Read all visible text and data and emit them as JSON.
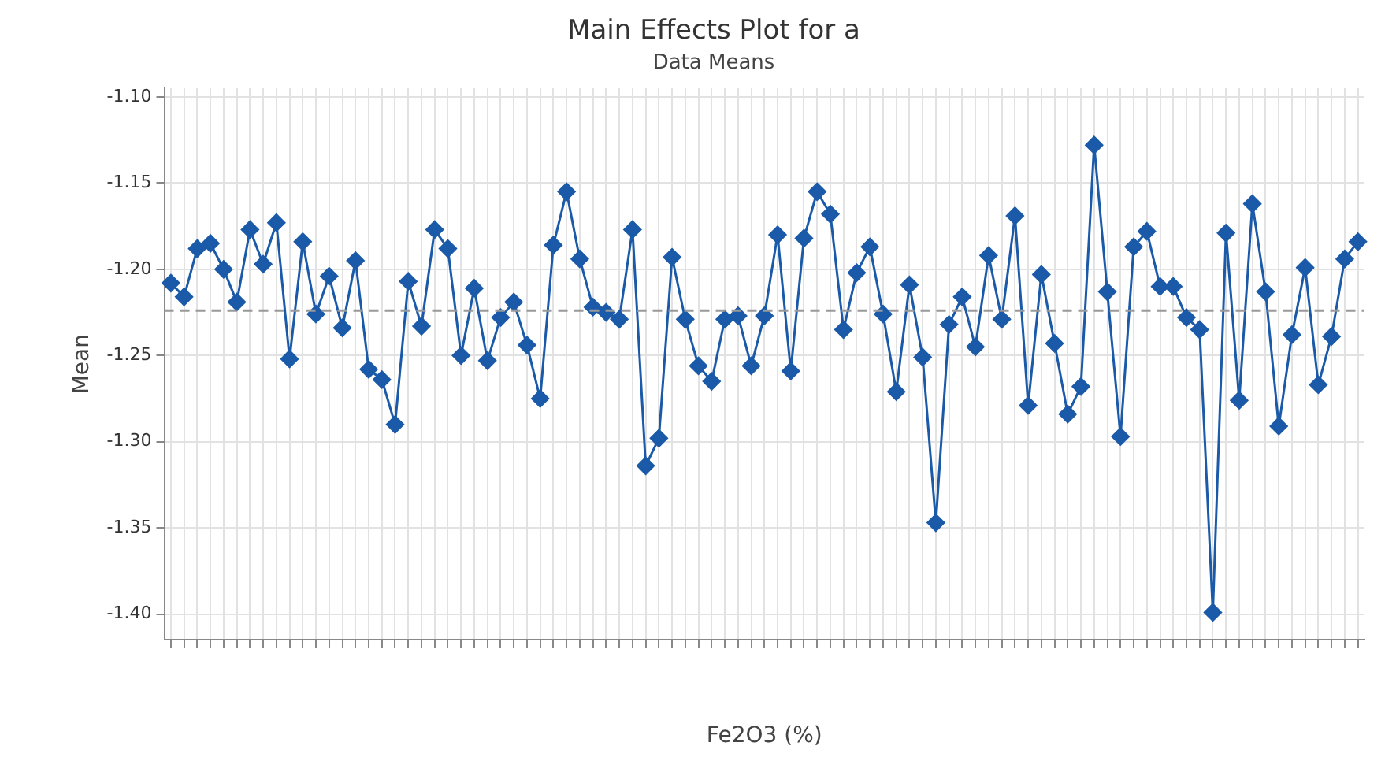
{
  "chart_data": {
    "type": "line",
    "title": "Main Effects Plot for a",
    "subtitle": "Data Means",
    "xlabel": "Fe2O3 (%)",
    "ylabel": "Mean",
    "categories": [
      null,
      null,
      null,
      null,
      null,
      null,
      null,
      null,
      null,
      null,
      null,
      null,
      null,
      null,
      null,
      null,
      null,
      null,
      null,
      null,
      null,
      null,
      null,
      null,
      null,
      null,
      null,
      null,
      null,
      null,
      null,
      null,
      null,
      null,
      null,
      null,
      null,
      null,
      null,
      null,
      null,
      null,
      null,
      null,
      null,
      null,
      null,
      null,
      null,
      null,
      null,
      null,
      null,
      null,
      null,
      null,
      null,
      null,
      null,
      null,
      null,
      null,
      null,
      null,
      null,
      null,
      null,
      null,
      null,
      null,
      null,
      null,
      null,
      null,
      null,
      null,
      null,
      null,
      null,
      null,
      null,
      null,
      null,
      null,
      null,
      null,
      null,
      null,
      null,
      null,
      null
    ],
    "series": [
      {
        "color": "#1a5aa8",
        "values": [
          -1.208,
          -1.216,
          -1.188,
          -1.185,
          -1.2,
          -1.219,
          -1.177,
          -1.197,
          -1.173,
          -1.252,
          -1.184,
          -1.226,
          -1.204,
          -1.234,
          -1.195,
          -1.258,
          -1.264,
          -1.29,
          -1.207,
          -1.233,
          -1.177,
          -1.188,
          -1.25,
          -1.211,
          -1.253,
          -1.228,
          -1.219,
          -1.244,
          -1.275,
          -1.186,
          -1.155,
          -1.194,
          -1.222,
          -1.225,
          -1.229,
          -1.177,
          -1.314,
          -1.298,
          -1.193,
          -1.229,
          -1.256,
          -1.265,
          -1.229,
          -1.227,
          -1.256,
          -1.227,
          -1.18,
          -1.259,
          -1.182,
          -1.155,
          -1.168,
          -1.235,
          -1.202,
          -1.187,
          -1.226,
          -1.271,
          -1.209,
          -1.251,
          -1.347,
          -1.232,
          -1.216,
          -1.245,
          -1.192,
          -1.229,
          -1.169,
          -1.279,
          -1.203,
          -1.243,
          -1.284,
          -1.268,
          -1.128,
          -1.213,
          -1.297,
          -1.187,
          -1.178,
          -1.21,
          -1.21,
          -1.228,
          -1.235,
          -1.399,
          -1.179,
          -1.276,
          -1.162,
          -1.213,
          -1.291,
          -1.238,
          -1.199,
          -1.267,
          -1.239,
          -1.194,
          -1.184
        ]
      }
    ],
    "ylim": [
      -1.415,
      -1.095
    ],
    "yticks": [
      {
        "value": -1.4,
        "label": "-1.40"
      },
      {
        "value": -1.35,
        "label": "-1.35"
      },
      {
        "value": -1.3,
        "label": "-1.30"
      },
      {
        "value": -1.25,
        "label": "-1.25"
      },
      {
        "value": -1.2,
        "label": "-1.20"
      },
      {
        "value": -1.15,
        "label": "-1.15"
      },
      {
        "value": -1.1,
        "label": "-1.10"
      }
    ],
    "ref_lines": [
      {
        "axis": "y",
        "value": -1.224,
        "color": "#999999",
        "line_style": "dashed"
      }
    ],
    "grid": true,
    "legend": false,
    "marker": "diamond",
    "line_style": "solid"
  }
}
